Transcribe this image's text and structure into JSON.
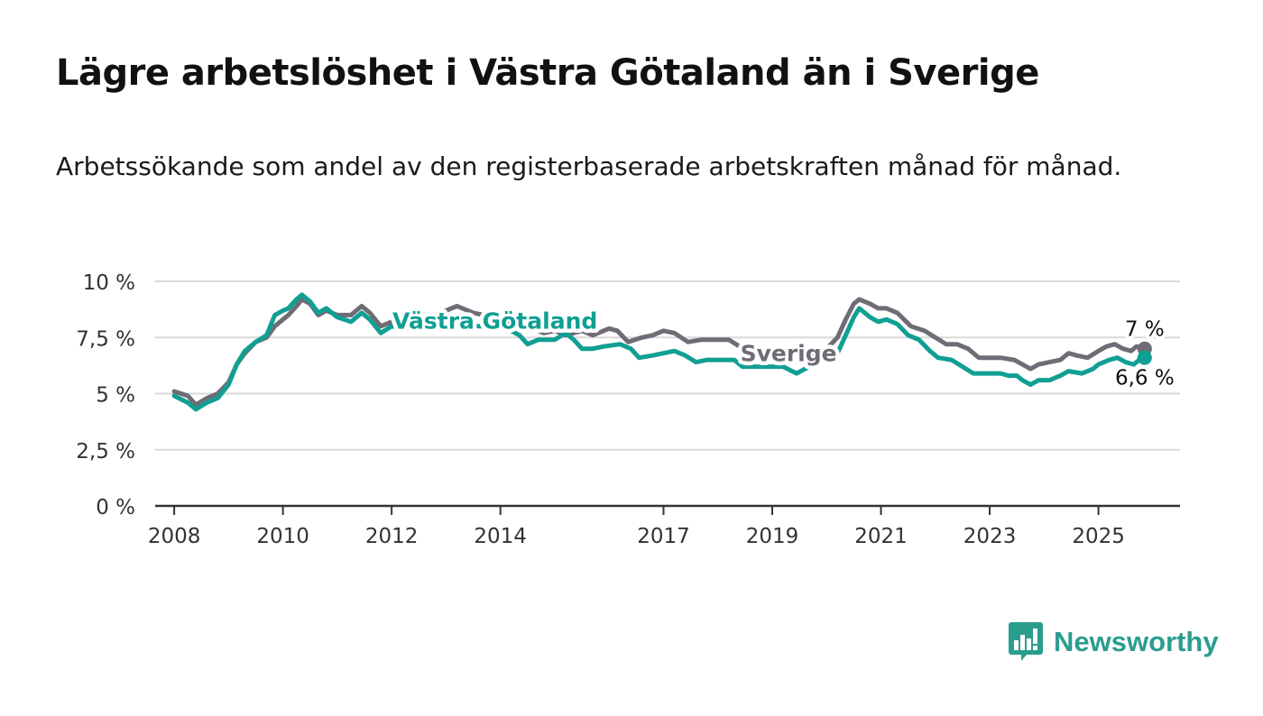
{
  "title": "Lägre arbetslöshet i Västra Götaland än i Sverige",
  "subtitle": "Arbetssökande som andel av den registerbaserade arbetskraften månad för månad.",
  "brand": {
    "name": "Newsworthy",
    "color": "#2a9d8f"
  },
  "chart_data": {
    "type": "line",
    "title": "Lägre arbetslöshet i Västra Götaland än i Sverige",
    "subtitle": "Arbetssökande som andel av den registerbaserade arbetskraften månad för månad.",
    "xlabel": "",
    "ylabel": "",
    "xlim": [
      2007.7,
      2026.5
    ],
    "ylim": [
      0,
      10
    ],
    "grid": true,
    "x_ticks": [
      2008,
      2010,
      2012,
      2014,
      2017,
      2019,
      2021,
      2023,
      2025
    ],
    "x_tick_labels": [
      "2008",
      "2010",
      "2012",
      "2014",
      "2017",
      "2019",
      "2021",
      "2023",
      "2025"
    ],
    "y_ticks": [
      0,
      2.5,
      5,
      7.5,
      10
    ],
    "y_tick_labels": [
      "0 %",
      "2,5 %",
      "5 %",
      "7,5 %",
      "10 %"
    ],
    "series": [
      {
        "name": "Sverige",
        "color": "#6f6c75",
        "points": [
          [
            2008.0,
            5.1
          ],
          [
            2008.25,
            4.9
          ],
          [
            2008.4,
            4.5
          ],
          [
            2008.6,
            4.8
          ],
          [
            2008.8,
            5.0
          ],
          [
            2009.0,
            5.5
          ],
          [
            2009.15,
            6.3
          ],
          [
            2009.3,
            6.8
          ],
          [
            2009.5,
            7.3
          ],
          [
            2009.7,
            7.5
          ],
          [
            2009.85,
            8.0
          ],
          [
            2010.0,
            8.3
          ],
          [
            2010.1,
            8.5
          ],
          [
            2010.25,
            8.9
          ],
          [
            2010.35,
            9.2
          ],
          [
            2010.5,
            9.0
          ],
          [
            2010.65,
            8.5
          ],
          [
            2010.8,
            8.7
          ],
          [
            2011.0,
            8.5
          ],
          [
            2011.25,
            8.5
          ],
          [
            2011.45,
            8.9
          ],
          [
            2011.6,
            8.6
          ],
          [
            2011.8,
            8.0
          ],
          [
            2012.0,
            8.2
          ],
          [
            2012.3,
            8.2
          ],
          [
            2012.6,
            8.4
          ],
          [
            2012.8,
            8.5
          ],
          [
            2013.0,
            8.7
          ],
          [
            2013.2,
            8.9
          ],
          [
            2013.5,
            8.6
          ],
          [
            2013.7,
            8.5
          ],
          [
            2014.0,
            8.4
          ],
          [
            2014.25,
            8.0
          ],
          [
            2014.4,
            7.8
          ],
          [
            2014.6,
            7.9
          ],
          [
            2014.8,
            7.7
          ],
          [
            2015.0,
            7.8
          ],
          [
            2015.2,
            7.6
          ],
          [
            2015.5,
            7.8
          ],
          [
            2015.7,
            7.6
          ],
          [
            2016.0,
            7.9
          ],
          [
            2016.15,
            7.8
          ],
          [
            2016.35,
            7.3
          ],
          [
            2016.6,
            7.5
          ],
          [
            2016.8,
            7.6
          ],
          [
            2017.0,
            7.8
          ],
          [
            2017.2,
            7.7
          ],
          [
            2017.45,
            7.3
          ],
          [
            2017.7,
            7.4
          ],
          [
            2018.0,
            7.4
          ],
          [
            2018.2,
            7.4
          ],
          [
            2018.4,
            7.1
          ],
          [
            2018.6,
            6.8
          ],
          [
            2018.8,
            7.0
          ],
          [
            2019.0,
            7.0
          ],
          [
            2019.2,
            6.9
          ],
          [
            2019.4,
            6.8
          ],
          [
            2019.7,
            6.8
          ],
          [
            2020.0,
            7.0
          ],
          [
            2020.2,
            7.5
          ],
          [
            2020.35,
            8.3
          ],
          [
            2020.5,
            9.0
          ],
          [
            2020.6,
            9.2
          ],
          [
            2020.8,
            9.0
          ],
          [
            2020.95,
            8.8
          ],
          [
            2021.1,
            8.8
          ],
          [
            2021.3,
            8.6
          ],
          [
            2021.55,
            8.0
          ],
          [
            2021.8,
            7.8
          ],
          [
            2022.0,
            7.5
          ],
          [
            2022.2,
            7.2
          ],
          [
            2022.4,
            7.2
          ],
          [
            2022.6,
            7.0
          ],
          [
            2022.8,
            6.6
          ],
          [
            2023.0,
            6.6
          ],
          [
            2023.2,
            6.6
          ],
          [
            2023.45,
            6.5
          ],
          [
            2023.6,
            6.3
          ],
          [
            2023.75,
            6.1
          ],
          [
            2023.9,
            6.3
          ],
          [
            2024.1,
            6.4
          ],
          [
            2024.3,
            6.5
          ],
          [
            2024.45,
            6.8
          ],
          [
            2024.6,
            6.7
          ],
          [
            2024.8,
            6.6
          ],
          [
            2025.0,
            6.9
          ],
          [
            2025.15,
            7.1
          ],
          [
            2025.3,
            7.2
          ],
          [
            2025.45,
            7.0
          ],
          [
            2025.6,
            6.9
          ],
          [
            2025.7,
            7.1
          ],
          [
            2025.85,
            7.0
          ]
        ],
        "end_label": "7 %"
      },
      {
        "name": "Västra Götaland",
        "color": "#109f93",
        "points": [
          [
            2008.0,
            4.9
          ],
          [
            2008.25,
            4.6
          ],
          [
            2008.4,
            4.3
          ],
          [
            2008.6,
            4.6
          ],
          [
            2008.8,
            4.8
          ],
          [
            2009.0,
            5.4
          ],
          [
            2009.15,
            6.3
          ],
          [
            2009.3,
            6.9
          ],
          [
            2009.5,
            7.3
          ],
          [
            2009.7,
            7.6
          ],
          [
            2009.85,
            8.5
          ],
          [
            2010.0,
            8.7
          ],
          [
            2010.1,
            8.8
          ],
          [
            2010.25,
            9.2
          ],
          [
            2010.35,
            9.4
          ],
          [
            2010.5,
            9.1
          ],
          [
            2010.65,
            8.6
          ],
          [
            2010.8,
            8.8
          ],
          [
            2011.0,
            8.4
          ],
          [
            2011.25,
            8.2
          ],
          [
            2011.45,
            8.6
          ],
          [
            2011.6,
            8.3
          ],
          [
            2011.8,
            7.7
          ],
          [
            2012.0,
            8.0
          ],
          [
            2012.3,
            7.9
          ],
          [
            2012.6,
            8.1
          ],
          [
            2012.8,
            7.9
          ],
          [
            2013.0,
            8.0
          ],
          [
            2013.3,
            8.1
          ],
          [
            2013.6,
            8.0
          ],
          [
            2013.9,
            8.0
          ],
          [
            2014.2,
            7.8
          ],
          [
            2014.35,
            7.6
          ],
          [
            2014.5,
            7.2
          ],
          [
            2014.7,
            7.4
          ],
          [
            2015.0,
            7.4
          ],
          [
            2015.2,
            7.7
          ],
          [
            2015.35,
            7.4
          ],
          [
            2015.5,
            7.0
          ],
          [
            2015.7,
            7.0
          ],
          [
            2015.9,
            7.1
          ],
          [
            2016.2,
            7.2
          ],
          [
            2016.4,
            7.0
          ],
          [
            2016.55,
            6.6
          ],
          [
            2016.8,
            6.7
          ],
          [
            2017.0,
            6.8
          ],
          [
            2017.2,
            6.9
          ],
          [
            2017.4,
            6.7
          ],
          [
            2017.6,
            6.4
          ],
          [
            2017.8,
            6.5
          ],
          [
            2018.0,
            6.5
          ],
          [
            2018.3,
            6.5
          ],
          [
            2018.45,
            6.2
          ],
          [
            2018.7,
            6.2
          ],
          [
            2019.0,
            6.2
          ],
          [
            2019.2,
            6.2
          ],
          [
            2019.45,
            5.9
          ],
          [
            2019.6,
            6.1
          ],
          [
            2019.8,
            6.3
          ],
          [
            2020.0,
            6.6
          ],
          [
            2020.2,
            6.8
          ],
          [
            2020.35,
            7.6
          ],
          [
            2020.5,
            8.4
          ],
          [
            2020.6,
            8.8
          ],
          [
            2020.8,
            8.4
          ],
          [
            2020.95,
            8.2
          ],
          [
            2021.1,
            8.3
          ],
          [
            2021.3,
            8.1
          ],
          [
            2021.5,
            7.6
          ],
          [
            2021.7,
            7.4
          ],
          [
            2021.9,
            6.9
          ],
          [
            2022.05,
            6.6
          ],
          [
            2022.3,
            6.5
          ],
          [
            2022.5,
            6.2
          ],
          [
            2022.7,
            5.9
          ],
          [
            2023.0,
            5.9
          ],
          [
            2023.2,
            5.9
          ],
          [
            2023.35,
            5.8
          ],
          [
            2023.5,
            5.8
          ],
          [
            2023.6,
            5.6
          ],
          [
            2023.75,
            5.4
          ],
          [
            2023.9,
            5.6
          ],
          [
            2024.1,
            5.6
          ],
          [
            2024.3,
            5.8
          ],
          [
            2024.45,
            6.0
          ],
          [
            2024.7,
            5.9
          ],
          [
            2024.9,
            6.1
          ],
          [
            2025.0,
            6.3
          ],
          [
            2025.2,
            6.5
          ],
          [
            2025.35,
            6.6
          ],
          [
            2025.5,
            6.4
          ],
          [
            2025.65,
            6.3
          ],
          [
            2025.75,
            6.5
          ],
          [
            2025.85,
            6.6
          ]
        ],
        "end_label": "6,6 %"
      }
    ]
  }
}
